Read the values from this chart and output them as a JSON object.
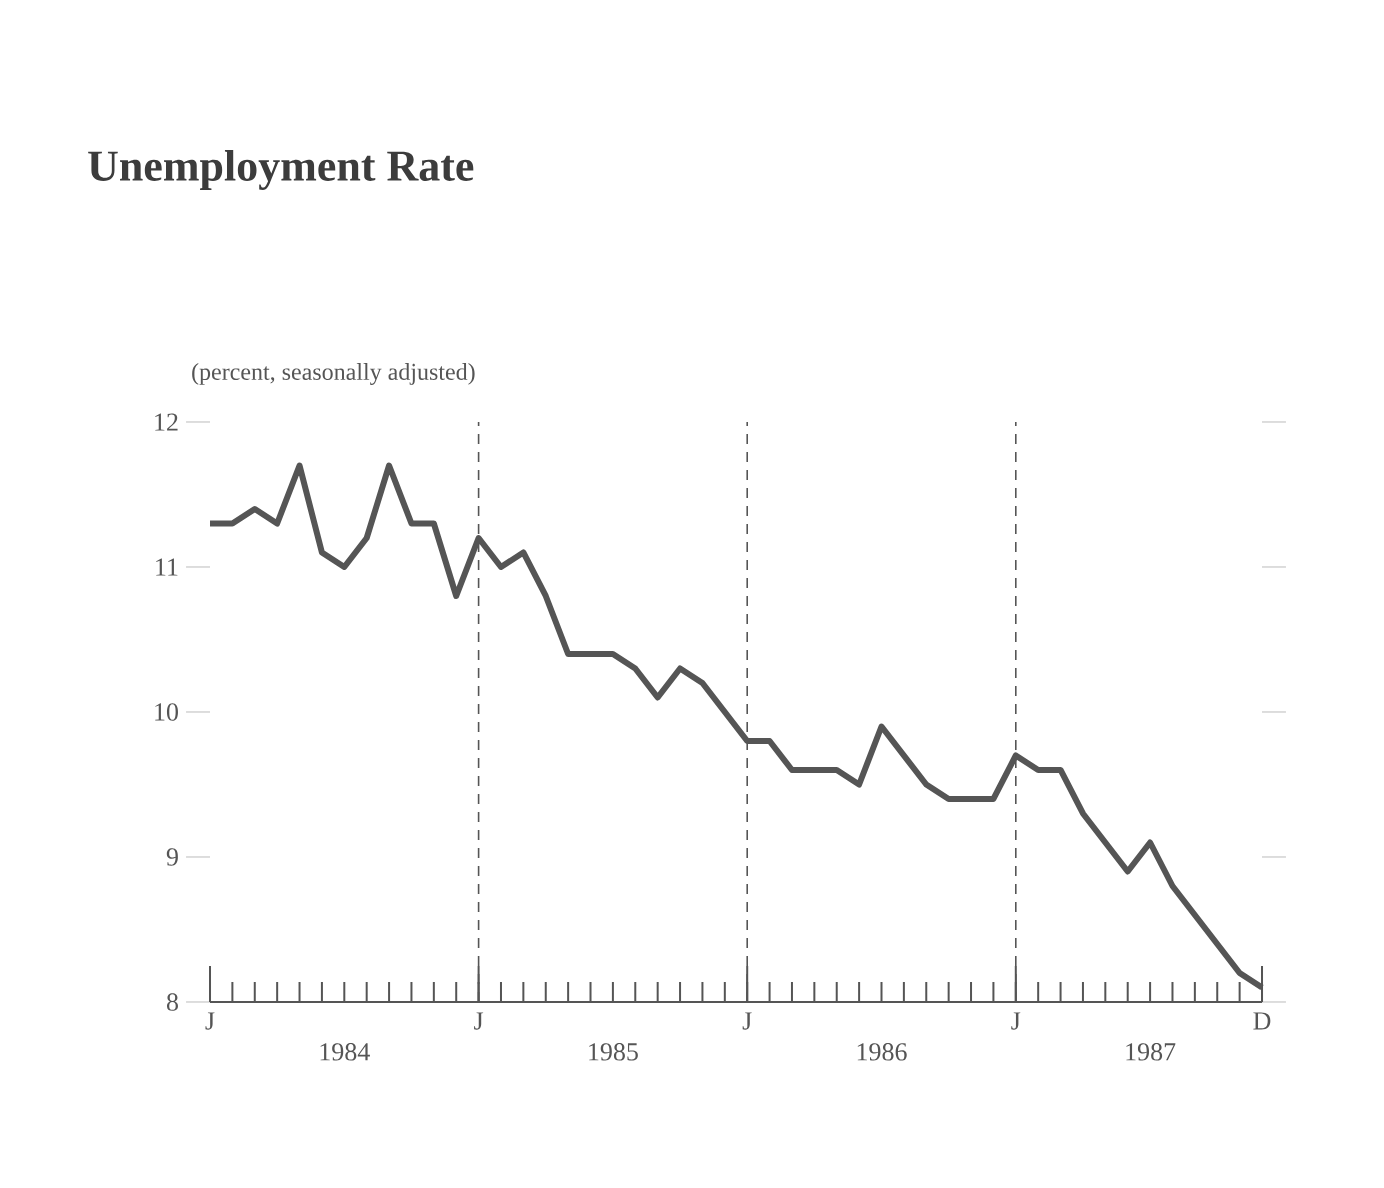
{
  "chart_data": {
    "type": "line",
    "title": "Unemployment Rate",
    "subtitle": "(percent, seasonally adjusted)",
    "x": [
      "1984-01",
      "1984-02",
      "1984-03",
      "1984-04",
      "1984-05",
      "1984-06",
      "1984-07",
      "1984-08",
      "1984-09",
      "1984-10",
      "1984-11",
      "1984-12",
      "1985-01",
      "1985-02",
      "1985-03",
      "1985-04",
      "1985-05",
      "1985-06",
      "1985-07",
      "1985-08",
      "1985-09",
      "1985-10",
      "1985-11",
      "1985-12",
      "1986-01",
      "1986-02",
      "1986-03",
      "1986-04",
      "1986-05",
      "1986-06",
      "1986-07",
      "1986-08",
      "1986-09",
      "1986-10",
      "1986-11",
      "1986-12",
      "1987-01",
      "1987-02",
      "1987-03",
      "1987-04",
      "1987-05",
      "1987-06",
      "1987-07",
      "1987-08",
      "1987-09",
      "1987-10",
      "1987-11",
      "1987-12"
    ],
    "series": [
      {
        "color": "#555555",
        "values": [
          11.3,
          11.3,
          11.4,
          11.3,
          11.7,
          11.1,
          11.0,
          11.2,
          11.7,
          11.3,
          11.3,
          10.8,
          11.2,
          11.0,
          11.1,
          10.8,
          10.4,
          10.4,
          10.4,
          10.3,
          10.1,
          10.3,
          10.2,
          10.0,
          9.8,
          9.8,
          9.6,
          9.6,
          9.6,
          9.5,
          9.9,
          9.7,
          9.5,
          9.4,
          9.4,
          9.4,
          9.7,
          9.6,
          9.6,
          9.3,
          9.1,
          8.9,
          9.1,
          8.8,
          8.6,
          8.4,
          8.2,
          8.1
        ]
      }
    ],
    "xlim": [
      "1984-01",
      "1987-12"
    ],
    "ylim": [
      8,
      12
    ],
    "yticks": [
      8,
      9,
      10,
      11,
      12
    ],
    "xticks": [
      {
        "value": "1984-01",
        "label": null
      },
      {
        "value": "1984-07",
        "label": "1984"
      },
      {
        "value": "1985-01",
        "label": null
      },
      {
        "value": "1985-07",
        "label": "1985"
      },
      {
        "value": "1986-01",
        "label": null
      },
      {
        "value": "1986-07",
        "label": "1986"
      },
      {
        "value": "1987-01",
        "label": null
      },
      {
        "value": "1987-07",
        "label": "1987"
      },
      {
        "value": "1987-12",
        "label": null
      }
    ],
    "annotations": [
      "J",
      "J",
      "J",
      "J",
      "D"
    ],
    "ref_lines": [
      {
        "axis": "x",
        "value": "1985-01",
        "line_style": "dashed",
        "color": "#555555"
      },
      {
        "axis": "x",
        "value": "1986-01",
        "line_style": "dashed",
        "color": "#555555"
      },
      {
        "axis": "x",
        "value": "1987-01",
        "line_style": "dashed",
        "color": "#555555"
      }
    ],
    "marker": "none",
    "line_style": "solid"
  }
}
